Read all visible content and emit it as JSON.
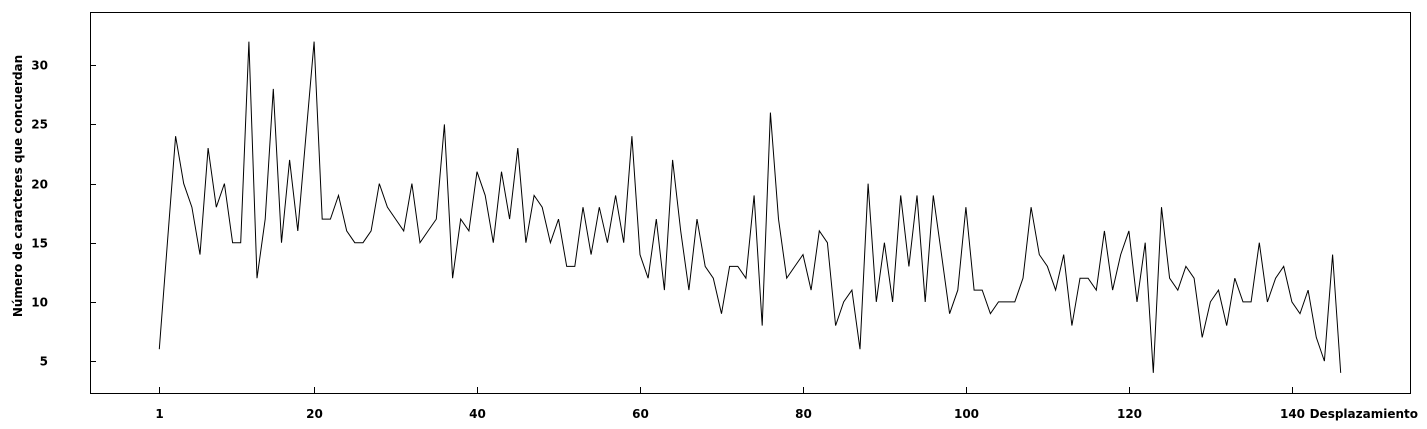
{
  "chart_data": {
    "type": "line",
    "xlabel": "Desplazamiento",
    "ylabel": "Número de caracteres que concuerdan",
    "xlim": [
      -7.5,
      154.5
    ],
    "ylim": [
      2.3,
      34.5
    ],
    "xticks": [
      1,
      20,
      40,
      60,
      80,
      100,
      120,
      140
    ],
    "yticks": [
      5,
      10,
      15,
      20,
      25,
      30
    ],
    "grid": false,
    "legend": "none",
    "line_color": "#000000",
    "series": [
      {
        "x": [
          1,
          2,
          3,
          4,
          5,
          6,
          7,
          8,
          9,
          10,
          11,
          12,
          13,
          14,
          15,
          16,
          17,
          18,
          19,
          20,
          21,
          22,
          23,
          24,
          25,
          26,
          27,
          28,
          29,
          30,
          31,
          32,
          33,
          34,
          35,
          36,
          37,
          38,
          39,
          40,
          41,
          42,
          43,
          44,
          45,
          46,
          47,
          48,
          49,
          50,
          51,
          52,
          53,
          54,
          55,
          56,
          57,
          58,
          59,
          60,
          61,
          62,
          63,
          64,
          65,
          66,
          67,
          68,
          69,
          70,
          71,
          72,
          73,
          74,
          75,
          76,
          77,
          78,
          79,
          80,
          81,
          82,
          83,
          84,
          85,
          86,
          87,
          88,
          89,
          90,
          91,
          92,
          93,
          94,
          95,
          96,
          97,
          98,
          99,
          100,
          101,
          102,
          103,
          104,
          105,
          106,
          107,
          108,
          109,
          110,
          111,
          112,
          113,
          114,
          115,
          116,
          117,
          118,
          119,
          120,
          121,
          122,
          123,
          124,
          125,
          126,
          127,
          128,
          129,
          130,
          131,
          132,
          133,
          134,
          135,
          136,
          137,
          138,
          139,
          140,
          141,
          142,
          143,
          144,
          145,
          146
        ],
        "y": [
          6,
          15,
          24,
          20,
          18,
          14,
          23,
          18,
          20,
          15,
          15,
          32,
          12,
          17,
          28,
          15,
          22,
          16,
          24,
          32,
          17,
          17,
          19,
          16,
          15,
          15,
          16,
          20,
          18,
          17,
          16,
          20,
          15,
          16,
          17,
          25,
          12,
          17,
          16,
          21,
          19,
          15,
          21,
          17,
          23,
          15,
          19,
          18,
          15,
          17,
          13,
          13,
          18,
          14,
          18,
          15,
          19,
          15,
          24,
          14,
          12,
          17,
          11,
          22,
          16,
          11,
          17,
          13,
          12,
          9,
          13,
          13,
          12,
          19,
          8,
          26,
          17,
          12,
          13,
          14,
          11,
          16,
          15,
          8,
          10,
          11,
          6,
          20,
          10,
          15,
          10,
          19,
          13,
          19,
          10,
          19,
          14,
          9,
          11,
          18,
          11,
          11,
          9,
          10,
          10,
          10,
          12,
          18,
          14,
          13,
          11,
          14,
          8,
          12,
          12,
          11,
          16,
          11,
          14,
          16,
          10,
          15,
          4,
          18,
          12,
          11,
          13,
          12,
          7,
          10,
          11,
          8,
          12,
          10,
          10,
          15,
          10,
          12,
          13,
          10,
          9,
          11,
          7,
          5,
          14,
          4
        ]
      }
    ]
  }
}
